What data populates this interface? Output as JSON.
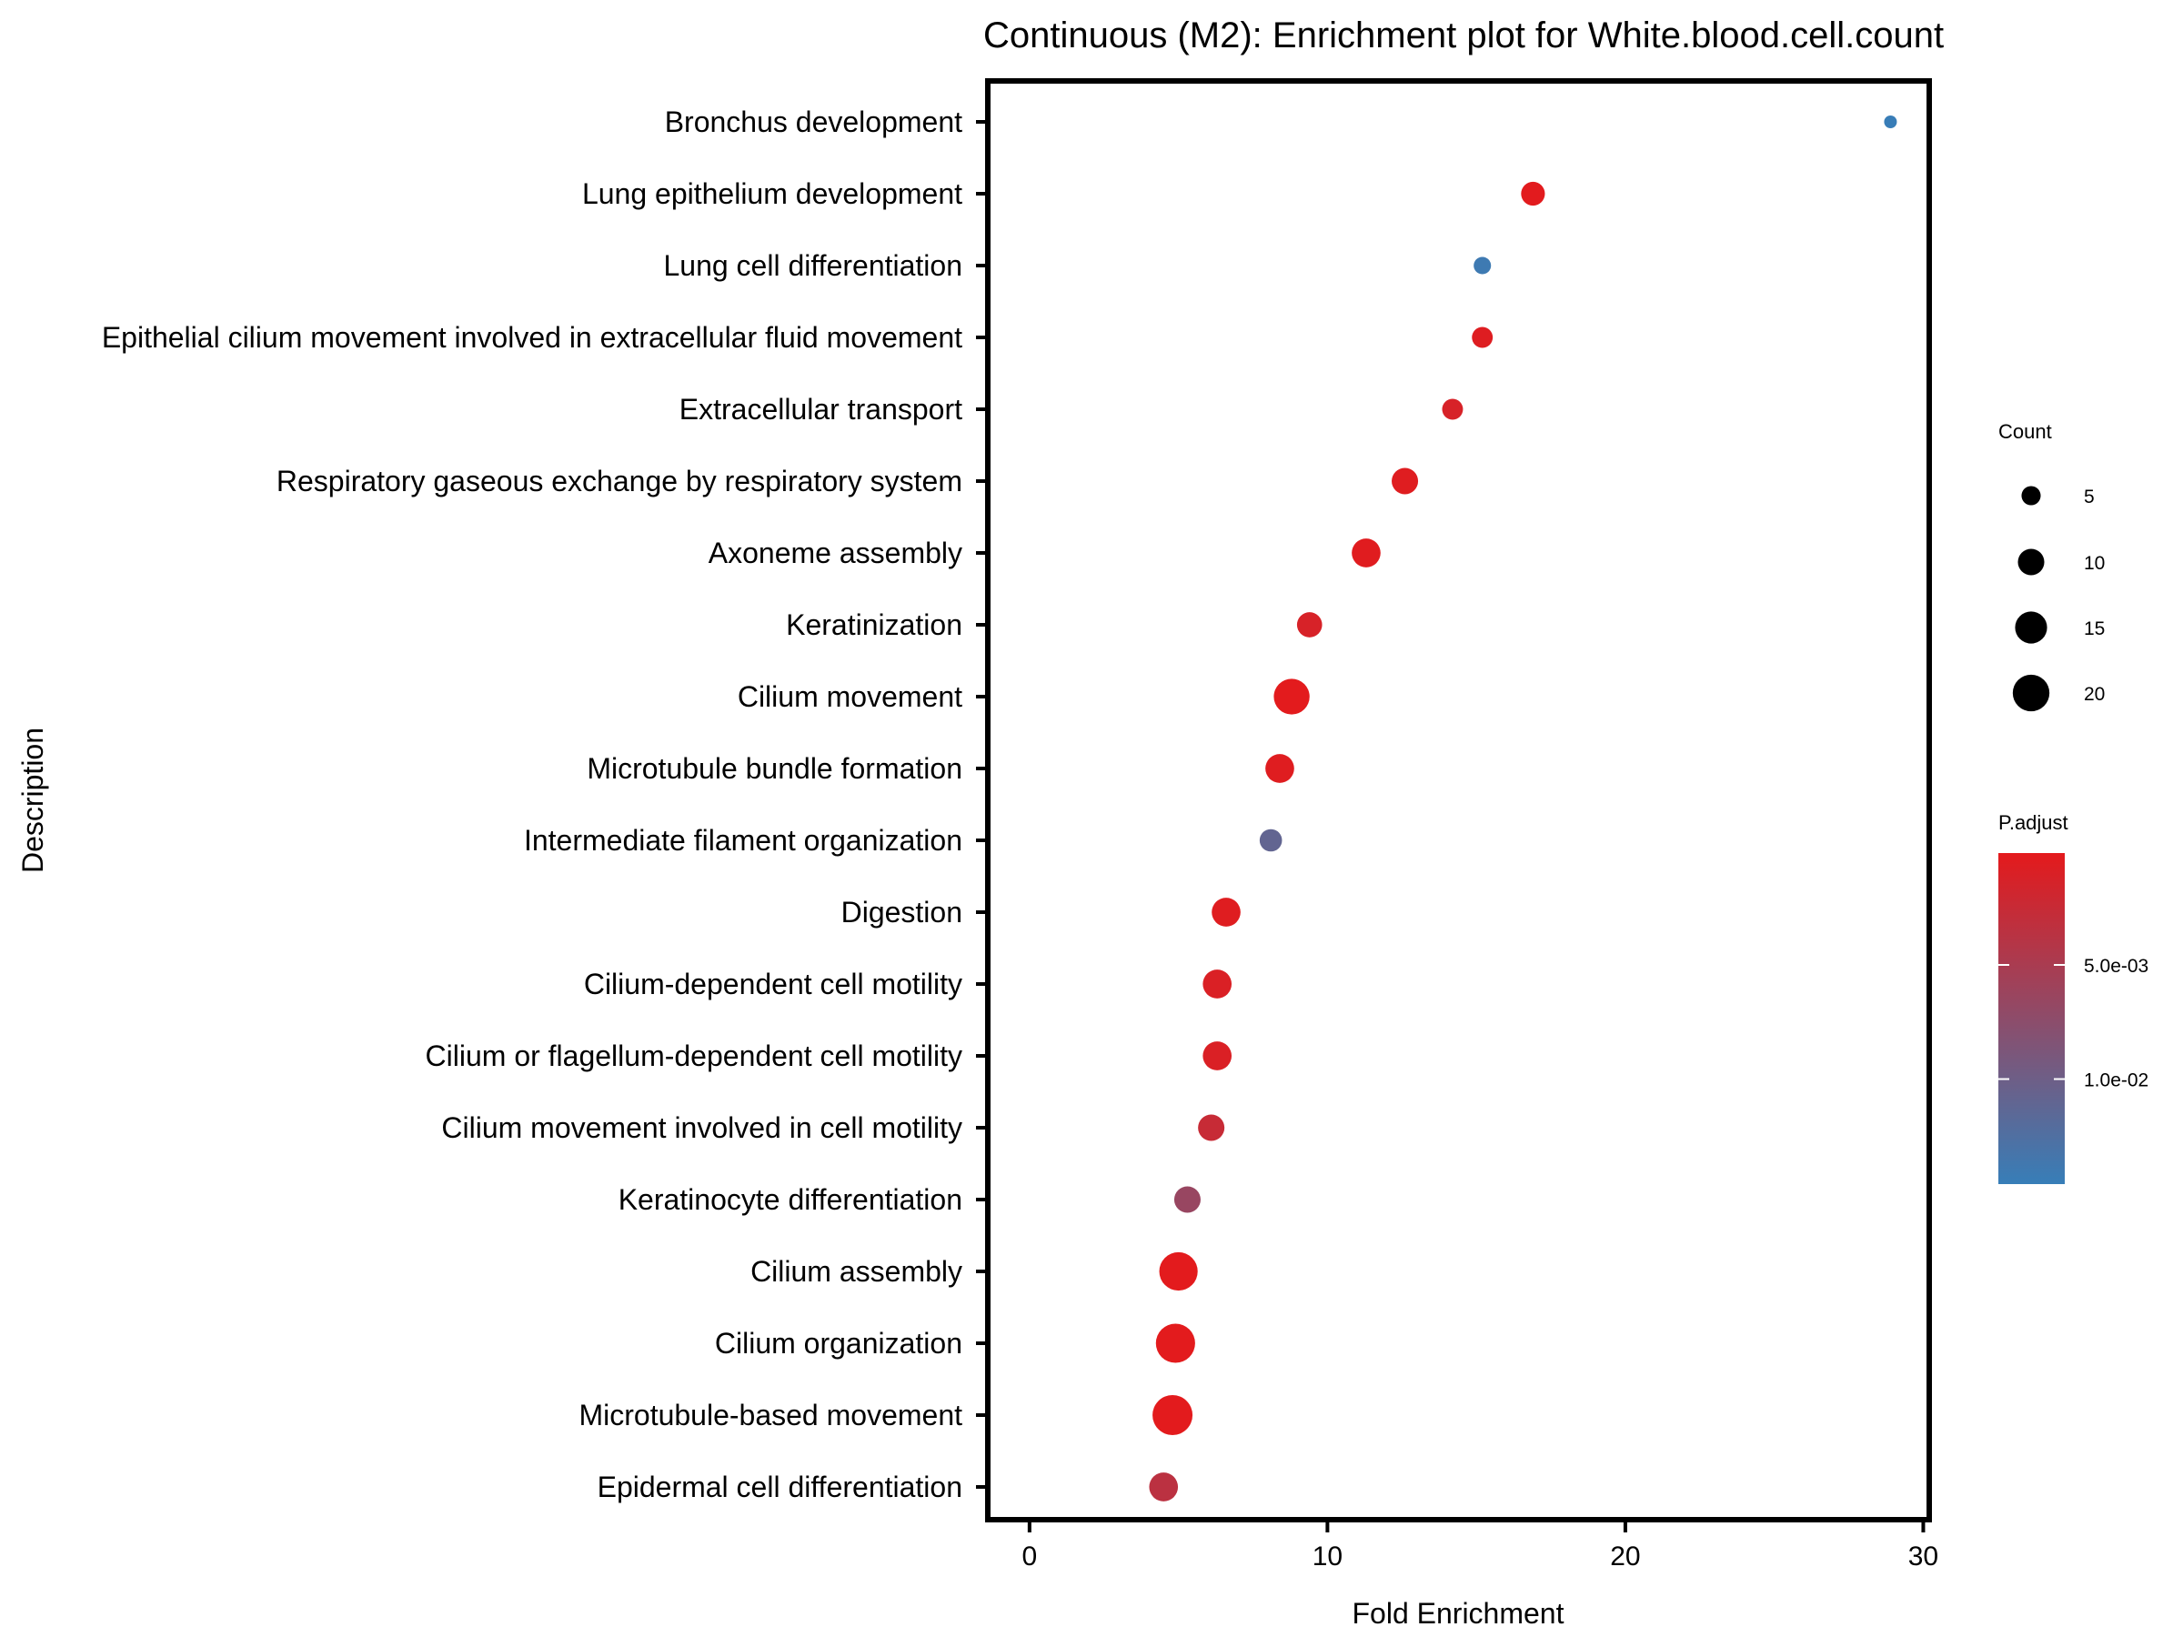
{
  "chart_data": {
    "type": "scatter",
    "title": "Continuous (M2): Enrichment plot for White.blood.cell.count",
    "xlabel": "Fold Enrichment",
    "ylabel": "Description",
    "xlim": [
      -1.4,
      30.2
    ],
    "xticks": [
      0,
      10,
      20,
      30
    ],
    "xtick_labels": [
      "0",
      "10",
      "20",
      "30"
    ],
    "grid": false,
    "legend_position": "right",
    "categories": [
      "Bronchus development",
      "Lung epithelium development",
      "Lung cell differentiation",
      "Epithelial cilium movement involved in extracellular fluid movement",
      "Extracellular transport",
      "Respiratory gaseous exchange by respiratory system",
      "Axoneme assembly",
      "Keratinization",
      "Cilium movement",
      "Microtubule bundle formation",
      "Intermediate filament organization",
      "Digestion",
      "Cilium-dependent cell motility",
      "Cilium or flagellum-dependent cell motility",
      "Cilium movement involved in cell motility",
      "Keratinocyte differentiation",
      "Cilium assembly",
      "Cilium organization",
      "Microtubule-based movement",
      "Epidermal cell differentiation"
    ],
    "points": [
      {
        "x": 28.9,
        "count": 2,
        "p_adjust": 0.0145
      },
      {
        "x": 16.9,
        "count": 8,
        "p_adjust": 0.0003
      },
      {
        "x": 15.2,
        "count": 4,
        "p_adjust": 0.014
      },
      {
        "x": 15.2,
        "count": 6,
        "p_adjust": 0.0006
      },
      {
        "x": 14.2,
        "count": 6,
        "p_adjust": 0.0012
      },
      {
        "x": 12.6,
        "count": 10,
        "p_adjust": 0.0005
      },
      {
        "x": 11.3,
        "count": 12,
        "p_adjust": 0.0004
      },
      {
        "x": 9.4,
        "count": 9,
        "p_adjust": 0.0012
      },
      {
        "x": 8.8,
        "count": 19,
        "p_adjust": 0.0002
      },
      {
        "x": 8.4,
        "count": 12,
        "p_adjust": 0.0005
      },
      {
        "x": 8.1,
        "count": 7,
        "p_adjust": 0.011
      },
      {
        "x": 6.6,
        "count": 12,
        "p_adjust": 0.0005
      },
      {
        "x": 6.3,
        "count": 12,
        "p_adjust": 0.0009
      },
      {
        "x": 6.3,
        "count": 12,
        "p_adjust": 0.0009
      },
      {
        "x": 6.1,
        "count": 10,
        "p_adjust": 0.0025
      },
      {
        "x": 5.3,
        "count": 10,
        "p_adjust": 0.0065
      },
      {
        "x": 5.0,
        "count": 22,
        "p_adjust": 0.0002
      },
      {
        "x": 4.9,
        "count": 23,
        "p_adjust": 0.0002
      },
      {
        "x": 4.8,
        "count": 24,
        "p_adjust": 0.0002
      },
      {
        "x": 4.5,
        "count": 12,
        "p_adjust": 0.0035
      }
    ],
    "size_legend": {
      "title": "Count",
      "values": [
        5,
        10,
        15,
        20
      ],
      "labels": [
        "5",
        "10",
        "15",
        "20"
      ]
    },
    "color_legend": {
      "title": "P.adjust",
      "range": [
        0.0001,
        0.0146
      ],
      "ticks": [
        0.005,
        0.01
      ],
      "tick_labels": [
        "5.0e-03",
        "1.0e-02"
      ],
      "low_color": "#e41a1c",
      "high_color": "#377eb8"
    }
  }
}
